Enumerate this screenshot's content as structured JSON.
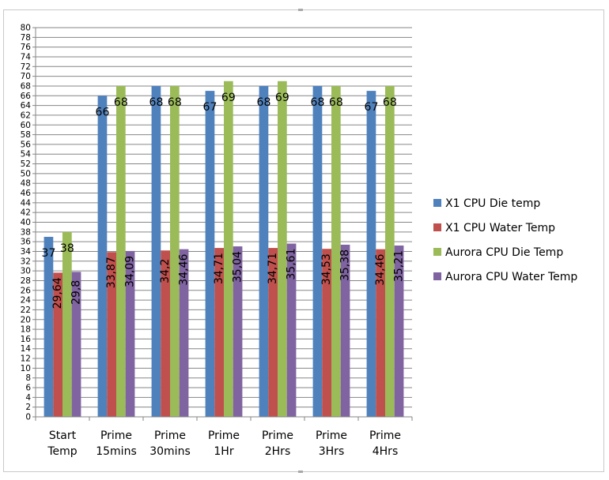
{
  "chart_data": {
    "type": "bar",
    "categories": [
      "Start Temp",
      "Prime 15mins",
      "Prime 30mins",
      "Prime 1Hr",
      "Prime 2Hrs",
      "Prime 3Hrs",
      "Prime 4Hrs"
    ],
    "category_lines": [
      [
        "Start",
        "Temp"
      ],
      [
        "Prime",
        "15mins"
      ],
      [
        "Prime",
        "30mins"
      ],
      [
        "Prime",
        "1Hr"
      ],
      [
        "Prime",
        "2Hrs"
      ],
      [
        "Prime",
        "3Hrs"
      ],
      [
        "Prime",
        "4Hrs"
      ]
    ],
    "series": [
      {
        "name": "X1 CPU Die temp",
        "color": "#4f81bd",
        "values": [
          37,
          66,
          68,
          67,
          68,
          68,
          67
        ],
        "labels": [
          "37",
          "66",
          "68",
          "67",
          "68",
          "68",
          "67"
        ],
        "label_orientation": "horizontal"
      },
      {
        "name": "X1 CPU Water Temp",
        "color": "#c0504d",
        "values": [
          29.64,
          33.87,
          34.2,
          34.71,
          34.71,
          34.53,
          34.46
        ],
        "labels": [
          "29,64",
          "33,87",
          "34,2",
          "34,71",
          "34,71",
          "34,53",
          "34,46"
        ],
        "label_orientation": "vertical"
      },
      {
        "name": "Aurora CPU Die Temp",
        "color": "#9bbb59",
        "values": [
          38,
          68,
          68,
          69,
          69,
          68,
          68
        ],
        "labels": [
          "38",
          "68",
          "68",
          "69",
          "69",
          "68",
          "68"
        ],
        "label_orientation": "horizontal"
      },
      {
        "name": "Aurora CPU Water Temp",
        "color": "#8064a2",
        "values": [
          29.8,
          34.09,
          34.46,
          35.04,
          35.61,
          35.38,
          35.21
        ],
        "labels": [
          "29,8",
          "34,09",
          "34,46",
          "35,04",
          "35,61",
          "35,38",
          "35,21"
        ],
        "label_orientation": "vertical"
      }
    ],
    "ylim": [
      0,
      80
    ],
    "ytick_step": 2,
    "grid": true,
    "legend_position": "right",
    "title": "",
    "xlabel": "",
    "ylabel": ""
  }
}
